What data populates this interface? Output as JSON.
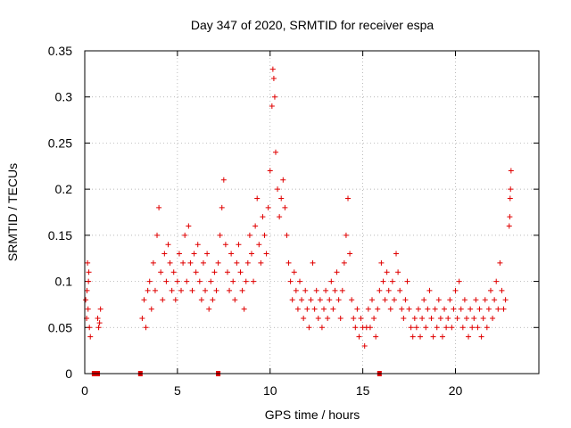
{
  "chart_data": {
    "type": "scatter",
    "title": "Day 347 of 2020, SRMTID for receiver espa",
    "xlabel": "GPS time / hours",
    "ylabel": "SRMTID / TECUs",
    "xlim": [
      0,
      24.5
    ],
    "ylim": [
      0,
      0.35
    ],
    "xticks": [
      0,
      5,
      10,
      15,
      20
    ],
    "xtick_labels": [
      "0",
      "5",
      "10",
      "15",
      "20"
    ],
    "yticks": [
      0,
      0.05,
      0.1,
      0.15,
      0.2,
      0.25,
      0.3,
      0.35
    ],
    "ytick_labels": [
      "0",
      "0.05",
      "0.1",
      "0.15",
      "0.2",
      "0.25",
      "0.3",
      "0.35"
    ],
    "grid": true,
    "marker": "plus",
    "color": "#e00000",
    "series": [
      {
        "name": "SRMTID",
        "points": [
          [
            0.05,
            0.08
          ],
          [
            0.1,
            0.06
          ],
          [
            0.15,
            0.12
          ],
          [
            0.2,
            0.1
          ],
          [
            0.25,
            0.05
          ],
          [
            0.3,
            0.04
          ],
          [
            0.12,
            0.09
          ],
          [
            0.18,
            0.07
          ],
          [
            0.22,
            0.11
          ],
          [
            0.7,
            0.06
          ],
          [
            0.75,
            0.05
          ],
          [
            0.8,
            0.055
          ],
          [
            0.85,
            0.07
          ],
          [
            3.1,
            0.06
          ],
          [
            3.2,
            0.08
          ],
          [
            3.3,
            0.05
          ],
          [
            3.4,
            0.09
          ],
          [
            3.5,
            0.1
          ],
          [
            3.6,
            0.07
          ],
          [
            3.7,
            0.12
          ],
          [
            3.8,
            0.09
          ],
          [
            3.9,
            0.15
          ],
          [
            4.0,
            0.18
          ],
          [
            4.1,
            0.11
          ],
          [
            4.2,
            0.08
          ],
          [
            4.3,
            0.13
          ],
          [
            4.4,
            0.1
          ],
          [
            4.5,
            0.14
          ],
          [
            4.6,
            0.12
          ],
          [
            4.7,
            0.09
          ],
          [
            4.8,
            0.11
          ],
          [
            4.9,
            0.08
          ],
          [
            5.0,
            0.1
          ],
          [
            5.1,
            0.13
          ],
          [
            5.2,
            0.09
          ],
          [
            5.3,
            0.12
          ],
          [
            5.4,
            0.15
          ],
          [
            5.5,
            0.1
          ],
          [
            5.6,
            0.16
          ],
          [
            5.7,
            0.12
          ],
          [
            5.8,
            0.09
          ],
          [
            5.9,
            0.13
          ],
          [
            6.0,
            0.11
          ],
          [
            6.1,
            0.14
          ],
          [
            6.2,
            0.1
          ],
          [
            6.3,
            0.08
          ],
          [
            6.4,
            0.12
          ],
          [
            6.5,
            0.09
          ],
          [
            6.6,
            0.13
          ],
          [
            6.7,
            0.07
          ],
          [
            6.8,
            0.1
          ],
          [
            6.9,
            0.08
          ],
          [
            7.0,
            0.11
          ],
          [
            7.1,
            0.09
          ],
          [
            7.2,
            0.12
          ],
          [
            7.3,
            0.15
          ],
          [
            7.4,
            0.18
          ],
          [
            7.5,
            0.21
          ],
          [
            7.6,
            0.14
          ],
          [
            7.7,
            0.11
          ],
          [
            7.8,
            0.09
          ],
          [
            7.9,
            0.13
          ],
          [
            8.0,
            0.1
          ],
          [
            8.1,
            0.08
          ],
          [
            8.2,
            0.12
          ],
          [
            8.3,
            0.14
          ],
          [
            8.4,
            0.11
          ],
          [
            8.5,
            0.09
          ],
          [
            8.6,
            0.07
          ],
          [
            8.7,
            0.1
          ],
          [
            8.8,
            0.12
          ],
          [
            8.9,
            0.15
          ],
          [
            9.0,
            0.13
          ],
          [
            9.1,
            0.1
          ],
          [
            9.2,
            0.16
          ],
          [
            9.3,
            0.19
          ],
          [
            9.4,
            0.14
          ],
          [
            9.5,
            0.12
          ],
          [
            9.6,
            0.17
          ],
          [
            9.7,
            0.15
          ],
          [
            9.8,
            0.13
          ],
          [
            9.9,
            0.18
          ],
          [
            10.0,
            0.22
          ],
          [
            10.1,
            0.29
          ],
          [
            10.15,
            0.33
          ],
          [
            10.2,
            0.32
          ],
          [
            10.25,
            0.3
          ],
          [
            10.3,
            0.24
          ],
          [
            10.4,
            0.2
          ],
          [
            10.5,
            0.17
          ],
          [
            10.6,
            0.19
          ],
          [
            10.7,
            0.21
          ],
          [
            10.8,
            0.18
          ],
          [
            10.9,
            0.15
          ],
          [
            11.0,
            0.12
          ],
          [
            11.1,
            0.1
          ],
          [
            11.2,
            0.08
          ],
          [
            11.3,
            0.11
          ],
          [
            11.4,
            0.09
          ],
          [
            11.5,
            0.07
          ],
          [
            11.6,
            0.1
          ],
          [
            11.7,
            0.08
          ],
          [
            11.8,
            0.06
          ],
          [
            11.9,
            0.09
          ],
          [
            12.0,
            0.07
          ],
          [
            12.1,
            0.05
          ],
          [
            12.2,
            0.08
          ],
          [
            12.3,
            0.12
          ],
          [
            12.4,
            0.07
          ],
          [
            12.5,
            0.09
          ],
          [
            12.6,
            0.06
          ],
          [
            12.7,
            0.08
          ],
          [
            12.8,
            0.05
          ],
          [
            12.9,
            0.07
          ],
          [
            13.0,
            0.09
          ],
          [
            13.1,
            0.06
          ],
          [
            13.2,
            0.08
          ],
          [
            13.3,
            0.1
          ],
          [
            13.4,
            0.07
          ],
          [
            13.5,
            0.09
          ],
          [
            13.6,
            0.11
          ],
          [
            13.7,
            0.08
          ],
          [
            13.8,
            0.06
          ],
          [
            13.9,
            0.09
          ],
          [
            14.0,
            0.12
          ],
          [
            14.1,
            0.15
          ],
          [
            14.2,
            0.19
          ],
          [
            14.3,
            0.13
          ],
          [
            14.4,
            0.08
          ],
          [
            14.5,
            0.06
          ],
          [
            14.6,
            0.05
          ],
          [
            14.7,
            0.07
          ],
          [
            14.8,
            0.04
          ],
          [
            14.9,
            0.06
          ],
          [
            15.0,
            0.05
          ],
          [
            15.1,
            0.03
          ],
          [
            15.2,
            0.05
          ],
          [
            15.3,
            0.07
          ],
          [
            15.4,
            0.05
          ],
          [
            15.5,
            0.08
          ],
          [
            15.6,
            0.06
          ],
          [
            15.7,
            0.04
          ],
          [
            15.8,
            0.07
          ],
          [
            15.9,
            0.09
          ],
          [
            16.0,
            0.12
          ],
          [
            16.1,
            0.1
          ],
          [
            16.2,
            0.08
          ],
          [
            16.3,
            0.11
          ],
          [
            16.4,
            0.09
          ],
          [
            16.5,
            0.07
          ],
          [
            16.6,
            0.1
          ],
          [
            16.7,
            0.08
          ],
          [
            16.8,
            0.13
          ],
          [
            16.9,
            0.11
          ],
          [
            17.0,
            0.09
          ],
          [
            17.1,
            0.07
          ],
          [
            17.2,
            0.06
          ],
          [
            17.3,
            0.08
          ],
          [
            17.4,
            0.1
          ],
          [
            17.5,
            0.07
          ],
          [
            17.6,
            0.05
          ],
          [
            17.7,
            0.04
          ],
          [
            17.8,
            0.06
          ],
          [
            17.9,
            0.05
          ],
          [
            18.0,
            0.07
          ],
          [
            18.1,
            0.04
          ],
          [
            18.2,
            0.06
          ],
          [
            18.3,
            0.08
          ],
          [
            18.4,
            0.05
          ],
          [
            18.5,
            0.07
          ],
          [
            18.6,
            0.09
          ],
          [
            18.7,
            0.06
          ],
          [
            18.8,
            0.04
          ],
          [
            18.9,
            0.07
          ],
          [
            19.0,
            0.05
          ],
          [
            19.1,
            0.08
          ],
          [
            19.2,
            0.06
          ],
          [
            19.3,
            0.04
          ],
          [
            19.4,
            0.07
          ],
          [
            19.5,
            0.05
          ],
          [
            19.6,
            0.06
          ],
          [
            19.7,
            0.08
          ],
          [
            19.8,
            0.05
          ],
          [
            19.9,
            0.07
          ],
          [
            20.0,
            0.09
          ],
          [
            20.1,
            0.06
          ],
          [
            20.2,
            0.1
          ],
          [
            20.3,
            0.07
          ],
          [
            20.4,
            0.05
          ],
          [
            20.5,
            0.08
          ],
          [
            20.6,
            0.06
          ],
          [
            20.7,
            0.04
          ],
          [
            20.8,
            0.07
          ],
          [
            20.9,
            0.05
          ],
          [
            21.0,
            0.06
          ],
          [
            21.1,
            0.08
          ],
          [
            21.2,
            0.05
          ],
          [
            21.3,
            0.07
          ],
          [
            21.4,
            0.04
          ],
          [
            21.5,
            0.06
          ],
          [
            21.6,
            0.08
          ],
          [
            21.7,
            0.05
          ],
          [
            21.8,
            0.07
          ],
          [
            21.9,
            0.09
          ],
          [
            22.0,
            0.06
          ],
          [
            22.1,
            0.08
          ],
          [
            22.2,
            0.1
          ],
          [
            22.3,
            0.07
          ],
          [
            22.4,
            0.12
          ],
          [
            22.5,
            0.09
          ],
          [
            22.6,
            0.07
          ],
          [
            22.7,
            0.08
          ],
          [
            22.9,
            0.16
          ],
          [
            22.95,
            0.19
          ],
          [
            23.0,
            0.22
          ],
          [
            22.97,
            0.2
          ],
          [
            22.93,
            0.17
          ]
        ]
      }
    ],
    "gap_markers_x": [
      0.5,
      0.6,
      0.7,
      3.0,
      7.2,
      15.9
    ]
  }
}
